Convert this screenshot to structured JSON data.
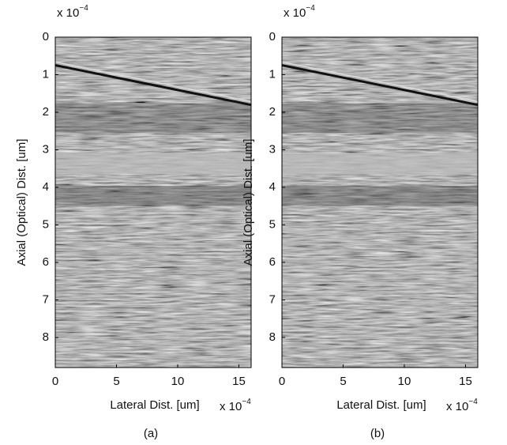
{
  "chart_data": [
    {
      "type": "image",
      "caption": "(a)",
      "xlabel": "Lateral Dist. [um]",
      "ylabel": "Axial (Optical) Dist. [um]",
      "x_multiplier": "x 10",
      "x_multiplier_power": "−4",
      "y_multiplier": "x 10",
      "y_multiplier_power": "−4",
      "xlim": [
        0,
        16
      ],
      "ylim": [
        0,
        8.8
      ],
      "xticks": [
        0,
        5,
        10,
        15
      ],
      "yticks": [
        0,
        1,
        2,
        3,
        4,
        5,
        6,
        7,
        8
      ],
      "y_reversed": true
    },
    {
      "type": "image",
      "caption": "(b)",
      "xlabel": "Lateral Dist. [um]",
      "ylabel": "Axial (Optical) Dist. [um]",
      "x_multiplier": "x 10",
      "x_multiplier_power": "−4",
      "y_multiplier": "x 10",
      "y_multiplier_power": "−4",
      "xlim": [
        0,
        16
      ],
      "ylim": [
        0,
        8.8
      ],
      "xticks": [
        0,
        5,
        10,
        15
      ],
      "yticks": [
        0,
        1,
        2,
        3,
        4,
        5,
        6,
        7,
        8
      ],
      "y_reversed": true
    }
  ]
}
